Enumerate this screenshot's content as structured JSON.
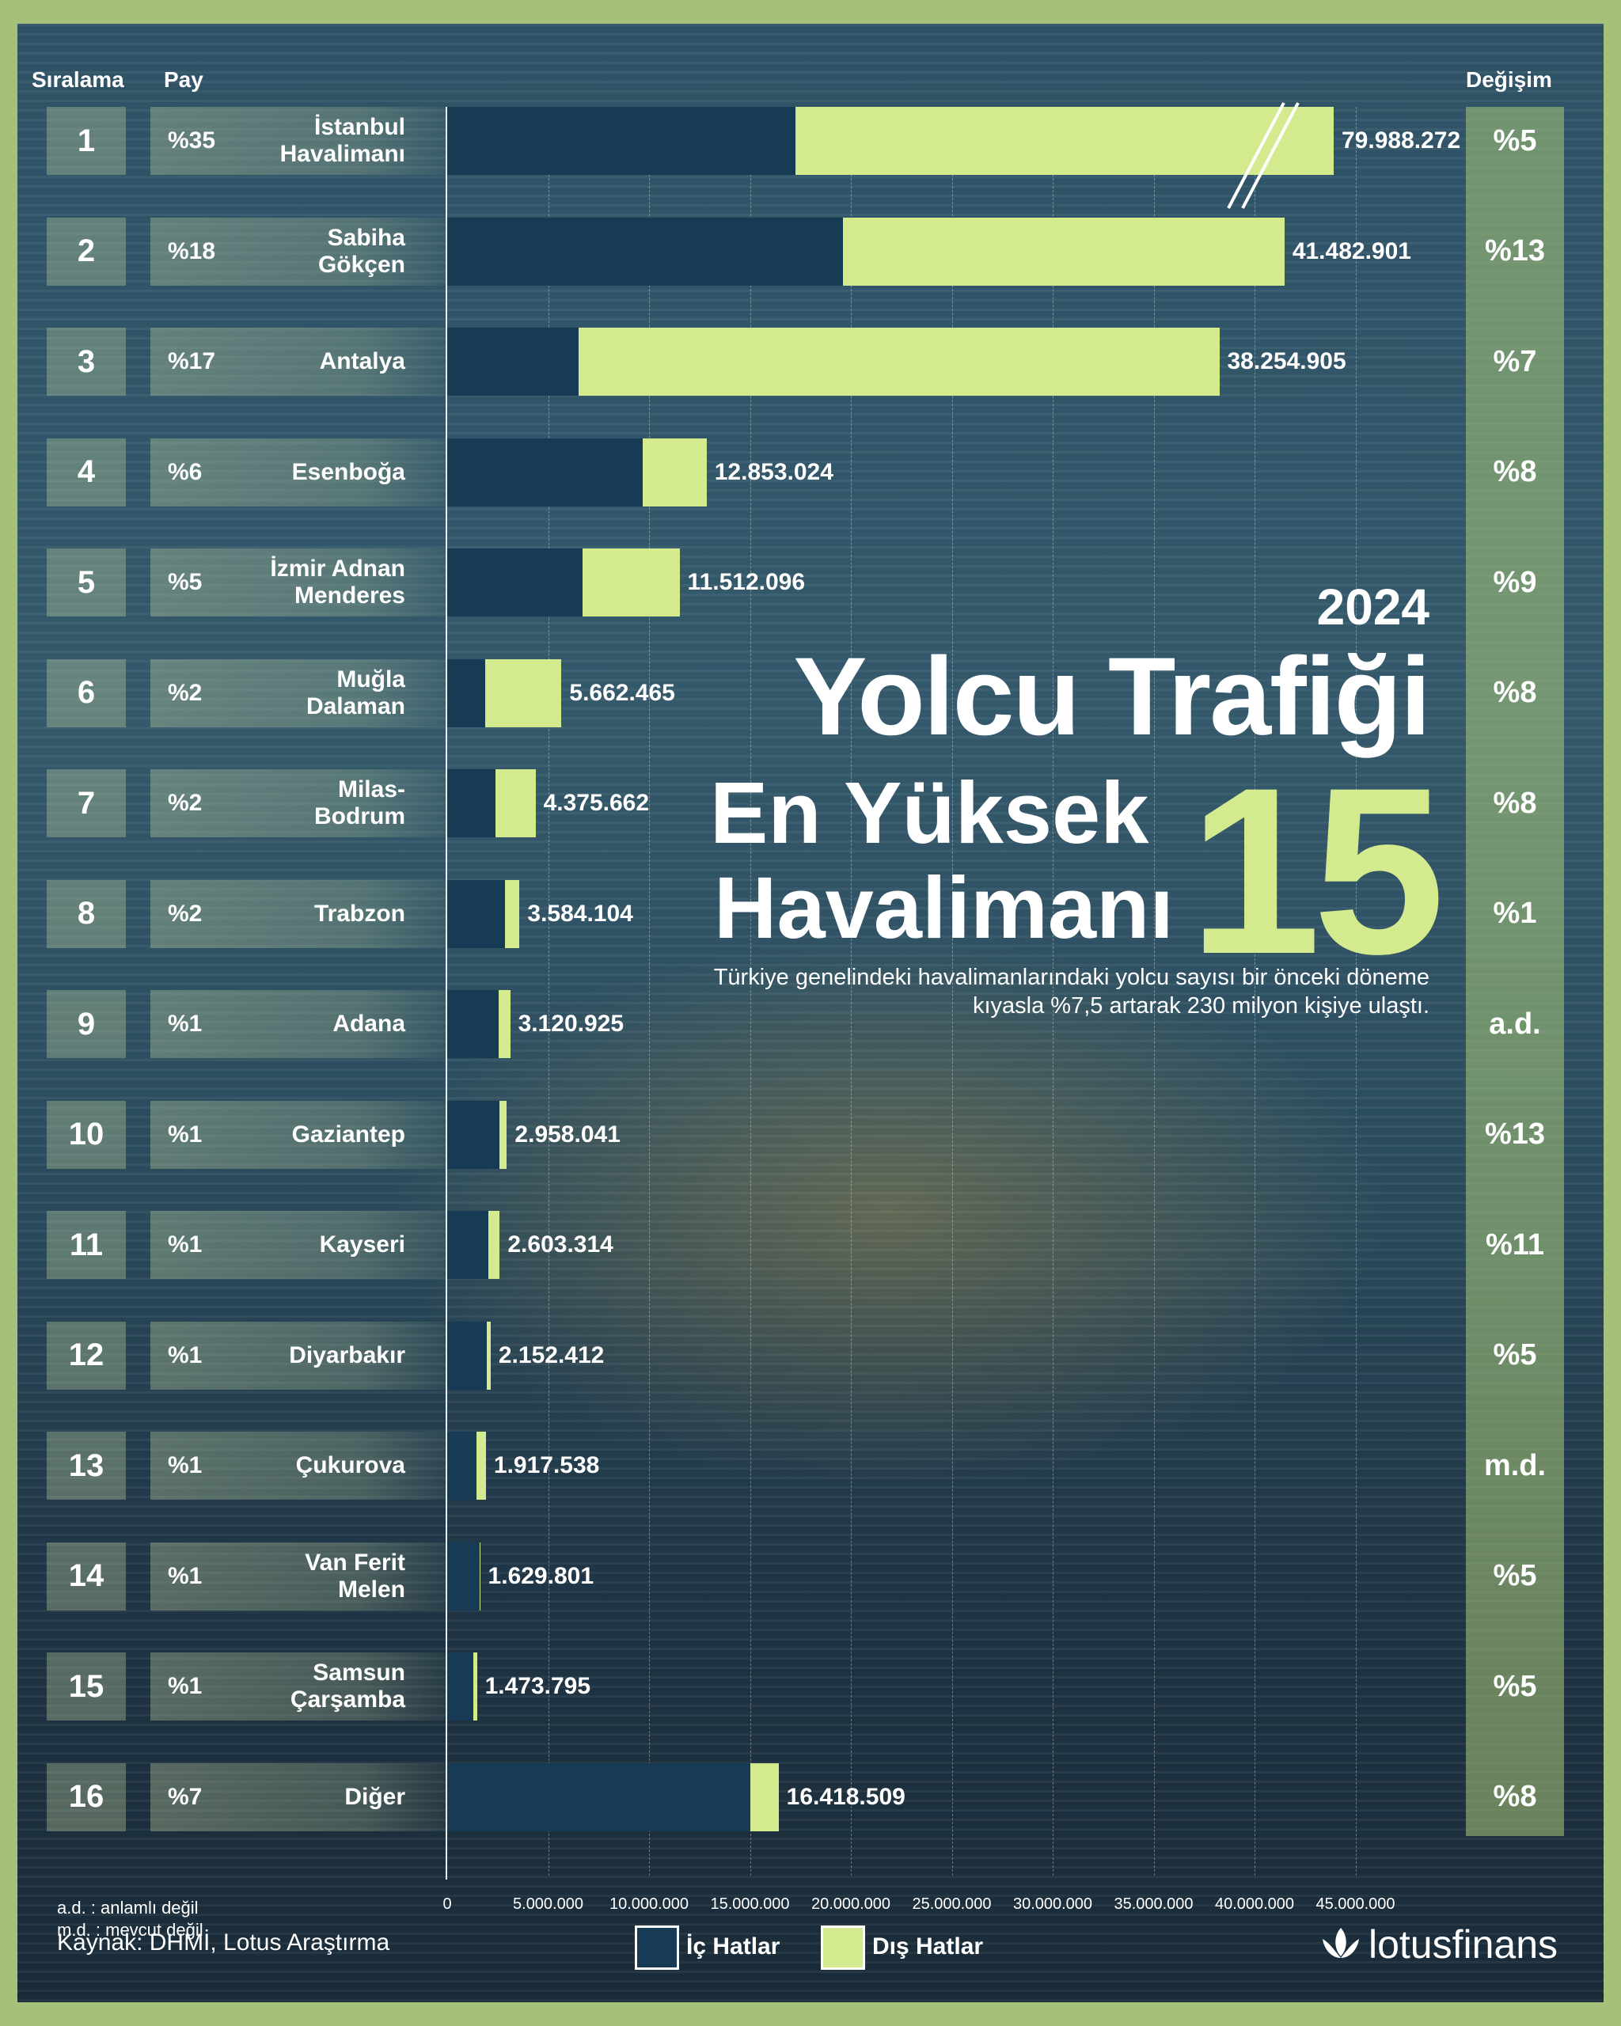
{
  "headers": {
    "rank": "Sıralama",
    "share": "Pay",
    "change": "Değişim"
  },
  "title": {
    "year": "2024",
    "line1": "Yolcu Trafiği",
    "line2": "En Yüksek",
    "line3": "Havalimanı",
    "number": "15"
  },
  "subtitle": "Türkiye genelindeki havalimanlarındaki yolcu sayısı bir önceki döneme kıyasla %7,5 artarak 230 milyon kişiye ulaştı.",
  "notes": {
    "ad": "a.d. : anlamlı değil",
    "md": "m.d. : mevcut değil"
  },
  "source": "Kaynak: DHMİ, Lotus Araştırma",
  "legend": {
    "domestic": "İç Hatlar",
    "international": "Dış Hatlar"
  },
  "brand": "lotusfinans",
  "colors": {
    "domestic": "#173a55",
    "international": "#d3ea8f",
    "frame": "#a4c079"
  },
  "chart_data": {
    "type": "bar",
    "orientation": "horizontal",
    "stacked": true,
    "xlim": [
      0,
      45000000
    ],
    "x_ticks": [
      "0",
      "5.000.000",
      "10.000.000",
      "15.000.000",
      "20.000.000",
      "25.000.000",
      "30.000.000",
      "35.000.000",
      "40.000.000",
      "45.000.000"
    ],
    "axis_break_on_first": true,
    "series": [
      {
        "name": "İç Hatlar",
        "key": "domestic"
      },
      {
        "name": "Dış Hatlar",
        "key": "international"
      }
    ],
    "rows": [
      {
        "rank": "1",
        "share": "%35",
        "name": [
          "İstanbul",
          "Havalimanı"
        ],
        "domestic": 17200000,
        "international": 62788272,
        "total": "79.988.272",
        "change": "%5"
      },
      {
        "rank": "2",
        "share": "%18",
        "name": [
          "Sabiha",
          "Gökçen"
        ],
        "domestic": 19600000,
        "international": 21882901,
        "total": "41.482.901",
        "change": "%13"
      },
      {
        "rank": "3",
        "share": "%17",
        "name": [
          "Antalya"
        ],
        "domestic": 6500000,
        "international": 31754905,
        "total": "38.254.905",
        "change": "%7"
      },
      {
        "rank": "4",
        "share": "%6",
        "name": [
          "Esenboğa"
        ],
        "domestic": 9700000,
        "international": 3153024,
        "total": "12.853.024",
        "change": "%8"
      },
      {
        "rank": "5",
        "share": "%5",
        "name": [
          "İzmir Adnan",
          "Menderes"
        ],
        "domestic": 6700000,
        "international": 4812096,
        "total": "11.512.096",
        "change": "%9"
      },
      {
        "rank": "6",
        "share": "%2",
        "name": [
          "Muğla",
          "Dalaman"
        ],
        "domestic": 1900000,
        "international": 3762465,
        "total": "5.662.465",
        "change": "%8"
      },
      {
        "rank": "7",
        "share": "%2",
        "name": [
          "Milas-",
          "Bodrum"
        ],
        "domestic": 2400000,
        "international": 1975662,
        "total": "4.375.662",
        "change": "%8"
      },
      {
        "rank": "8",
        "share": "%2",
        "name": [
          "Trabzon"
        ],
        "domestic": 2850000,
        "international": 734104,
        "total": "3.584.104",
        "change": "%1"
      },
      {
        "rank": "9",
        "share": "%1",
        "name": [
          "Adana"
        ],
        "domestic": 2550000,
        "international": 570925,
        "total": "3.120.925",
        "change": "a.d."
      },
      {
        "rank": "10",
        "share": "%1",
        "name": [
          "Gaziantep"
        ],
        "domestic": 2600000,
        "international": 358041,
        "total": "2.958.041",
        "change": "%13"
      },
      {
        "rank": "11",
        "share": "%1",
        "name": [
          "Kayseri"
        ],
        "domestic": 2050000,
        "international": 553314,
        "total": "2.603.314",
        "change": "%11"
      },
      {
        "rank": "12",
        "share": "%1",
        "name": [
          "Diyarbakır"
        ],
        "domestic": 1950000,
        "international": 202412,
        "total": "2.152.412",
        "change": "%5"
      },
      {
        "rank": "13",
        "share": "%1",
        "name": [
          "Çukurova"
        ],
        "domestic": 1450000,
        "international": 467538,
        "total": "1.917.538",
        "change": "m.d."
      },
      {
        "rank": "14",
        "share": "%1",
        "name": [
          "Van Ferit",
          "Melen"
        ],
        "domestic": 1600000,
        "international": 29801,
        "total": "1.629.801",
        "change": "%5"
      },
      {
        "rank": "15",
        "share": "%1",
        "name": [
          "Samsun",
          "Çarşamba"
        ],
        "domestic": 1300000,
        "international": 173795,
        "total": "1.473.795",
        "change": "%5"
      },
      {
        "rank": "16",
        "share": "%7",
        "name": [
          "Diğer"
        ],
        "domestic": 15000000,
        "international": 1418509,
        "total": "16.418.509",
        "change": "%8"
      }
    ]
  }
}
